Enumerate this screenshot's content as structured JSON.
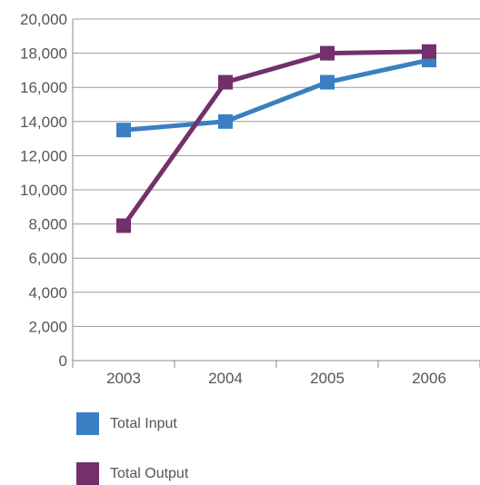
{
  "chart_data": {
    "type": "line",
    "categories": [
      "2003",
      "2004",
      "2005",
      "2006"
    ],
    "series": [
      {
        "name": "Total Input",
        "color": "#3a7fc1",
        "values": [
          13500,
          14000,
          16300,
          17600
        ]
      },
      {
        "name": "Total Output",
        "color": "#73306a",
        "values": [
          7900,
          16300,
          18000,
          18100
        ]
      }
    ],
    "ylim": [
      0,
      20000
    ],
    "yticks": [
      0,
      2000,
      4000,
      6000,
      8000,
      10000,
      12000,
      14000,
      16000,
      18000,
      20000
    ],
    "ytick_labels": [
      "0",
      "2,000",
      "4,000",
      "6,000",
      "8,000",
      "10,000",
      "12,000",
      "14,000",
      "16,000",
      "18,000",
      "20,000"
    ],
    "grid": true,
    "legend_position": "bottom-left",
    "title": "",
    "xlabel": "",
    "ylabel": ""
  }
}
